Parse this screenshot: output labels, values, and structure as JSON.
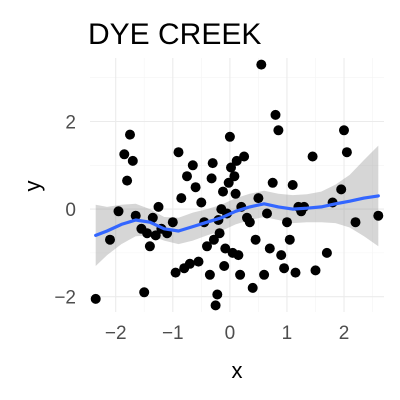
{
  "chart_data": {
    "type": "scatter",
    "title": "DYE CREEK",
    "xlabel": "x",
    "ylabel": "y",
    "xlim": [
      -2.45,
      2.7
    ],
    "ylim": [
      -2.35,
      3.45
    ],
    "x_ticks": [
      -2,
      -1,
      0,
      1,
      2
    ],
    "y_ticks": [
      -2,
      0,
      2
    ],
    "grid": true,
    "legend": "none",
    "series": [
      {
        "kind": "points",
        "color": "#000000",
        "points": [
          [
            -2.35,
            -2.05
          ],
          [
            -2.1,
            -0.7
          ],
          [
            -1.95,
            -0.05
          ],
          [
            -1.85,
            1.25
          ],
          [
            -1.8,
            0.65
          ],
          [
            -1.75,
            1.7
          ],
          [
            -1.7,
            1.1
          ],
          [
            -1.65,
            -0.15
          ],
          [
            -1.55,
            -0.45
          ],
          [
            -1.5,
            -1.9
          ],
          [
            -1.45,
            -0.55
          ],
          [
            -1.4,
            -0.85
          ],
          [
            -1.35,
            -0.2
          ],
          [
            -1.3,
            -0.6
          ],
          [
            -1.25,
            0.05
          ],
          [
            -1.2,
            -0.45
          ],
          [
            -1.1,
            -0.55
          ],
          [
            -1.0,
            -0.3
          ],
          [
            -0.95,
            -1.45
          ],
          [
            -0.9,
            1.3
          ],
          [
            -0.85,
            0.25
          ],
          [
            -0.8,
            -1.35
          ],
          [
            -0.75,
            0.75
          ],
          [
            -0.7,
            -1.25
          ],
          [
            -0.65,
            1.0
          ],
          [
            -0.6,
            0.5
          ],
          [
            -0.55,
            -1.2
          ],
          [
            -0.5,
            0.15
          ],
          [
            -0.45,
            -0.3
          ],
          [
            -0.4,
            -0.85
          ],
          [
            -0.35,
            -1.5
          ],
          [
            -0.32,
            0.7
          ],
          [
            -0.3,
            1.05
          ],
          [
            -0.28,
            -0.7
          ],
          [
            -0.25,
            -2.2
          ],
          [
            -0.22,
            -1.95
          ],
          [
            -0.2,
            -0.25
          ],
          [
            -0.18,
            -0.55
          ],
          [
            -0.15,
            0.0
          ],
          [
            -0.12,
            0.4
          ],
          [
            -0.1,
            -1.3
          ],
          [
            -0.08,
            -0.9
          ],
          [
            -0.05,
            -0.1
          ],
          [
            -0.02,
            0.6
          ],
          [
            0.0,
            1.65
          ],
          [
            0.02,
            0.95
          ],
          [
            0.05,
            -1.0
          ],
          [
            0.08,
            0.75
          ],
          [
            0.1,
            0.35
          ],
          [
            0.12,
            1.1
          ],
          [
            0.15,
            -1.05
          ],
          [
            0.18,
            -1.5
          ],
          [
            0.2,
            0.05
          ],
          [
            0.25,
            1.2
          ],
          [
            0.3,
            -0.2
          ],
          [
            0.35,
            -0.3
          ],
          [
            0.4,
            -1.8
          ],
          [
            0.45,
            -0.7
          ],
          [
            0.5,
            0.25
          ],
          [
            0.55,
            3.3
          ],
          [
            0.6,
            -1.5
          ],
          [
            0.65,
            -0.1
          ],
          [
            0.7,
            -0.9
          ],
          [
            0.75,
            0.6
          ],
          [
            0.8,
            2.15
          ],
          [
            0.85,
            1.8
          ],
          [
            0.9,
            -1.05
          ],
          [
            0.95,
            -1.35
          ],
          [
            1.0,
            -0.3
          ],
          [
            1.05,
            -0.7
          ],
          [
            1.1,
            0.55
          ],
          [
            1.15,
            -1.45
          ],
          [
            1.2,
            0.05
          ],
          [
            1.25,
            -0.05
          ],
          [
            1.3,
            0.05
          ],
          [
            1.45,
            1.2
          ],
          [
            1.5,
            -1.4
          ],
          [
            1.7,
            -1.0
          ],
          [
            1.8,
            0.15
          ],
          [
            1.95,
            0.45
          ],
          [
            2.0,
            1.8
          ],
          [
            2.05,
            1.3
          ],
          [
            2.2,
            -0.3
          ],
          [
            2.6,
            -0.15
          ]
        ]
      },
      {
        "kind": "loess-line",
        "color": "#3366ff",
        "x": [
          -2.35,
          -2.15,
          -1.9,
          -1.65,
          -1.4,
          -1.15,
          -0.9,
          -0.65,
          -0.4,
          -0.15,
          0.1,
          0.35,
          0.6,
          0.85,
          1.1,
          1.35,
          1.6,
          1.85,
          2.1,
          2.35,
          2.6
        ],
        "y": [
          -0.6,
          -0.5,
          -0.35,
          -0.25,
          -0.3,
          -0.45,
          -0.5,
          -0.4,
          -0.3,
          -0.2,
          -0.05,
          0.05,
          0.12,
          0.05,
          0.0,
          0.02,
          0.05,
          0.12,
          0.18,
          0.25,
          0.3
        ],
        "band_lower": [
          -1.3,
          -1.05,
          -0.8,
          -0.62,
          -0.6,
          -0.72,
          -0.8,
          -0.72,
          -0.6,
          -0.5,
          -0.35,
          -0.25,
          -0.18,
          -0.25,
          -0.32,
          -0.3,
          -0.3,
          -0.32,
          -0.42,
          -0.62,
          -0.85
        ],
        "band_upper": [
          0.1,
          0.05,
          0.1,
          0.12,
          0.0,
          -0.18,
          -0.2,
          -0.08,
          0.0,
          0.1,
          0.25,
          0.35,
          0.42,
          0.35,
          0.32,
          0.34,
          0.4,
          0.56,
          0.78,
          1.12,
          1.45
        ]
      }
    ]
  }
}
